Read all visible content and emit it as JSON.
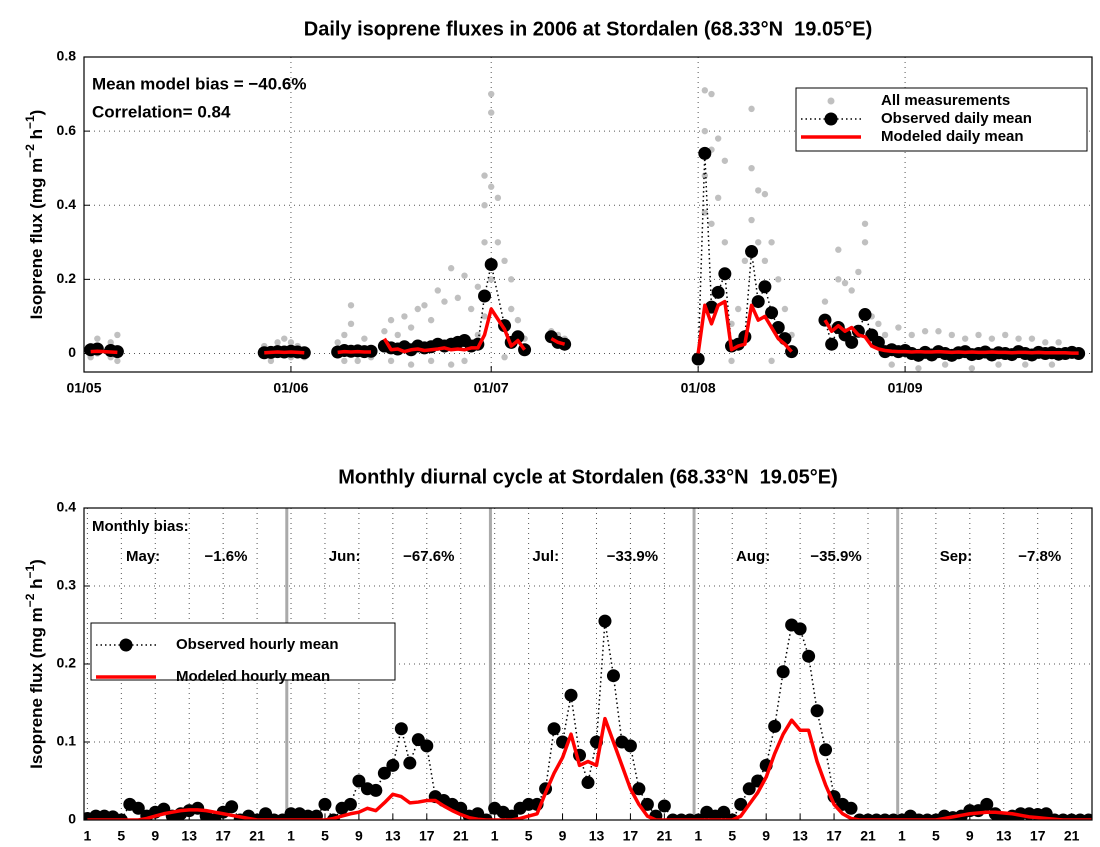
{
  "chart_data": [
    {
      "type": "line",
      "title": "Daily isoprene fluxes in 2006 at Stordalen (68.33°N  19.05°E)",
      "ylabel": [
        "Isoprene flux (mg m",
        "−2",
        " h",
        "−1",
        ")"
      ],
      "annotations": [
        "Mean model bias = −40.6%",
        "Correlation= 0.84"
      ],
      "legend": "upper right",
      "grid": true,
      "xlim": [
        0,
        151
      ],
      "ylim": [
        -0.05,
        0.8
      ],
      "xticks": [
        {
          "value": 0,
          "label": "01/05"
        },
        {
          "value": 31,
          "label": "01/06"
        },
        {
          "value": 61,
          "label": "01/07"
        },
        {
          "value": 92,
          "label": "01/08"
        },
        {
          "value": 123,
          "label": "01/09"
        }
      ],
      "yticks": [
        0,
        0.2,
        0.4,
        0.6,
        0.8
      ],
      "x": [
        1,
        2,
        4,
        5,
        null,
        27,
        28,
        29,
        30,
        31,
        32,
        33,
        null,
        38,
        39,
        40,
        41,
        42,
        43,
        null,
        45,
        46,
        47,
        48,
        49,
        50,
        51,
        52,
        53,
        54,
        55,
        56,
        57,
        58,
        59,
        60,
        61,
        63,
        64,
        65,
        66,
        null,
        70,
        71,
        72,
        null,
        92,
        93,
        94,
        95,
        96,
        97,
        98,
        99,
        100,
        101,
        102,
        103,
        104,
        105,
        106,
        null,
        111,
        112,
        113,
        114,
        115,
        116,
        117,
        118,
        119,
        120,
        121,
        122,
        123,
        124,
        125,
        126,
        127,
        128,
        129,
        130,
        131,
        132,
        133,
        134,
        135,
        136,
        137,
        138,
        139,
        140,
        141,
        142,
        143,
        144,
        145,
        146,
        147,
        148,
        149
      ],
      "series": [
        {
          "name": "All measurements",
          "color": "#c0c0c0",
          "style": "points",
          "x": [
            1,
            1,
            2,
            2,
            4,
            5,
            5,
            4,
            27,
            28,
            29,
            30,
            31,
            31,
            32,
            33,
            29,
            38,
            39,
            40,
            40,
            41,
            42,
            43,
            39,
            45,
            46,
            47,
            48,
            49,
            50,
            51,
            52,
            53,
            54,
            55,
            56,
            57,
            58,
            46,
            49,
            52,
            55,
            57,
            59,
            60,
            60,
            60,
            61,
            61,
            61,
            61,
            60,
            59,
            62,
            62,
            63,
            64,
            64,
            65,
            66,
            70,
            71,
            72,
            63,
            93,
            93,
            93,
            93,
            94,
            94,
            94,
            95,
            95,
            96,
            96,
            97,
            98,
            99,
            100,
            100,
            100,
            101,
            101,
            102,
            102,
            103,
            104,
            105,
            106,
            92,
            97,
            103,
            111,
            112,
            113,
            113,
            114,
            115,
            116,
            117,
            117,
            118,
            119,
            120,
            122,
            124,
            126,
            128,
            130,
            132,
            134,
            136,
            138,
            140,
            142,
            144,
            146,
            121,
            125,
            129,
            133,
            137,
            141,
            145
          ],
          "values": [
            0.02,
            -0.01,
            0.04,
            0.0,
            0.03,
            0.05,
            -0.02,
            -0.01,
            0.02,
            -0.02,
            0.03,
            0.04,
            -0.01,
            0.03,
            0.02,
            -0.01,
            0.01,
            0.03,
            0.05,
            0.13,
            0.08,
            -0.02,
            0.04,
            -0.01,
            -0.02,
            0.06,
            0.09,
            0.05,
            0.1,
            0.07,
            0.12,
            0.13,
            0.09,
            0.17,
            0.14,
            0.23,
            0.15,
            0.21,
            0.12,
            -0.02,
            -0.03,
            -0.02,
            -0.03,
            -0.02,
            0.18,
            0.48,
            0.4,
            0.3,
            0.7,
            0.65,
            0.45,
            0.2,
            0.1,
            0.05,
            0.42,
            0.3,
            0.25,
            0.2,
            0.12,
            0.09,
            0.04,
            0.06,
            0.05,
            0.04,
            -0.01,
            0.71,
            0.6,
            0.48,
            0.38,
            0.7,
            0.55,
            0.35,
            0.58,
            0.42,
            0.52,
            0.3,
            0.08,
            0.12,
            0.25,
            0.66,
            0.5,
            0.36,
            0.44,
            0.3,
            0.43,
            0.25,
            0.3,
            0.2,
            0.12,
            0.05,
            -0.02,
            -0.02,
            -0.02,
            0.14,
            0.07,
            0.28,
            0.2,
            0.19,
            0.17,
            0.22,
            0.35,
            0.3,
            0.1,
            0.08,
            0.05,
            0.07,
            0.05,
            0.06,
            0.06,
            0.05,
            0.04,
            0.05,
            0.04,
            0.05,
            0.04,
            0.04,
            0.03,
            0.03,
            -0.03,
            -0.04,
            -0.03,
            -0.04,
            -0.03,
            -0.03,
            -0.03
          ]
        },
        {
          "name": "Observed daily mean",
          "color": "#000000",
          "style": "dotted-markers",
          "values": [
            0.01,
            0.012,
            0.008,
            0.005,
            null,
            0.002,
            0.003,
            0.005,
            0.004,
            0.006,
            0.004,
            0.002,
            null,
            0.004,
            0.008,
            0.006,
            0.007,
            0.005,
            0.006,
            null,
            0.02,
            0.015,
            0.012,
            0.018,
            0.01,
            0.02,
            0.015,
            0.018,
            0.025,
            0.02,
            0.025,
            0.03,
            0.035,
            0.02,
            0.025,
            0.155,
            0.24,
            0.075,
            0.03,
            0.045,
            0.01,
            null,
            0.045,
            0.03,
            0.025,
            null,
            -0.015,
            0.54,
            0.125,
            0.165,
            0.215,
            0.02,
            0.025,
            0.045,
            0.275,
            0.14,
            0.18,
            0.11,
            0.07,
            0.04,
            0.005,
            null,
            0.09,
            0.025,
            0.07,
            0.05,
            0.03,
            0.06,
            0.105,
            0.05,
            0.03,
            0.005,
            0.01,
            0.005,
            0.008,
            0,
            -0.005,
            0.003,
            -0.004,
            0.005,
            0,
            -0.005,
            0.002,
            0.005,
            -0.003,
            0,
            0.004,
            -0.004,
            0.002,
            0,
            -0.003,
            0.005,
            0,
            -0.004,
            0.003,
            0,
            0.002,
            -0.002,
            0,
            0.003,
            0
          ]
        },
        {
          "name": "Modeled daily mean",
          "color": "#ff0000",
          "style": "line",
          "values": [
            0.005,
            0.006,
            0.004,
            0.003,
            null,
            0.002,
            0.003,
            0.004,
            0.003,
            0.004,
            0.003,
            0.002,
            null,
            0.003,
            0.005,
            0.004,
            0.005,
            0.004,
            0.004,
            null,
            0.04,
            0.01,
            0.012,
            0.005,
            0.01,
            0.012,
            0.008,
            0.01,
            0.012,
            0.015,
            0.01,
            0.012,
            0.01,
            0.015,
            0.015,
            0.05,
            0.12,
            0.065,
            0.02,
            0.035,
            0.01,
            null,
            0.04,
            0.03,
            0.025,
            null,
            0,
            0.13,
            0.08,
            0.13,
            0.14,
            0.01,
            0.02,
            0.025,
            0.13,
            0.09,
            0.1,
            0.07,
            0.04,
            0.025,
            0.005,
            null,
            0.09,
            0.06,
            0.075,
            0.06,
            0.07,
            0.05,
            0.045,
            0.02,
            0.012,
            0.008,
            0.006,
            0.005,
            0.005,
            0.004,
            0.005,
            0.004,
            0.004,
            0.005,
            0.004,
            0.003,
            0.004,
            0.003,
            0.004,
            0.003,
            0.003,
            0.004,
            0.003,
            0.003,
            0.002,
            0.003,
            0.003,
            0.002,
            0.003,
            0.002,
            0.002,
            0.002,
            0.002,
            0.001,
            0.001
          ]
        }
      ]
    },
    {
      "type": "line",
      "title": "Monthly diurnal cycle at Stordalen (68.33°N  19.05°E)",
      "ylabel": [
        "Isoprene flux (mg m",
        "−2",
        " h",
        "−1",
        ")"
      ],
      "legend": "center left",
      "grid": true,
      "xlim": [
        0.6,
        119.4
      ],
      "ylim": [
        0,
        0.4
      ],
      "xticks": [
        1,
        5,
        9,
        13,
        17,
        21,
        {
          "value": 25,
          "label": "1"
        },
        {
          "value": 29,
          "label": "5"
        },
        {
          "value": 33,
          "label": "9"
        },
        {
          "value": 37,
          "label": "13"
        },
        {
          "value": 41,
          "label": "17"
        },
        {
          "value": 45,
          "label": "21"
        },
        {
          "value": 49,
          "label": "1"
        },
        {
          "value": 53,
          "label": "5"
        },
        {
          "value": 57,
          "label": "9"
        },
        {
          "value": 61,
          "label": "13"
        },
        {
          "value": 65,
          "label": "17"
        },
        {
          "value": 69,
          "label": "21"
        },
        {
          "value": 73,
          "label": "1"
        },
        {
          "value": 77,
          "label": "5"
        },
        {
          "value": 81,
          "label": "9"
        },
        {
          "value": 85,
          "label": "13"
        },
        {
          "value": 89,
          "label": "17"
        },
        {
          "value": 93,
          "label": "21"
        },
        {
          "value": 97,
          "label": "1"
        },
        {
          "value": 101,
          "label": "5"
        },
        {
          "value": 105,
          "label": "9"
        },
        {
          "value": 109,
          "label": "13"
        },
        {
          "value": 113,
          "label": "17"
        },
        {
          "value": 117,
          "label": "21"
        }
      ],
      "yticks": [
        0,
        0.1,
        0.2,
        0.3,
        0.4
      ],
      "month_boundaries": [
        24.5,
        48.5,
        72.5,
        96.5
      ],
      "month_bias_title": "Monthly bias:",
      "month_bias": [
        {
          "month": "May:",
          "bias": "−1.6%"
        },
        {
          "month": "Jun:",
          "bias": "−67.6%"
        },
        {
          "month": "Jul:",
          "bias": "−33.9%"
        },
        {
          "month": "Aug:",
          "bias": "−35.9%"
        },
        {
          "month": "Sep:",
          "bias": "−7.8%"
        }
      ],
      "x": [
        1,
        2,
        3,
        4,
        5,
        6,
        7,
        8,
        9,
        10,
        11,
        12,
        13,
        14,
        15,
        16,
        17,
        18,
        19,
        20,
        21,
        22,
        23,
        24,
        25,
        26,
        27,
        28,
        29,
        30,
        31,
        32,
        33,
        34,
        35,
        36,
        37,
        38,
        39,
        40,
        41,
        42,
        43,
        44,
        45,
        46,
        47,
        48,
        49,
        50,
        51,
        52,
        53,
        54,
        55,
        56,
        57,
        58,
        59,
        60,
        61,
        62,
        63,
        64,
        65,
        66,
        67,
        68,
        69,
        70,
        71,
        72,
        73,
        74,
        75,
        76,
        77,
        78,
        79,
        80,
        81,
        82,
        83,
        84,
        85,
        86,
        87,
        88,
        89,
        90,
        91,
        92,
        93,
        94,
        95,
        96,
        97,
        98,
        99,
        100,
        101,
        102,
        103,
        104,
        105,
        106,
        107,
        108,
        109,
        110,
        111,
        112,
        113,
        114,
        115,
        116,
        117,
        118,
        119,
        120
      ],
      "series": [
        {
          "name": "Observed hourly mean",
          "color": "#000000",
          "style": "dotted-markers",
          "values": [
            0.002,
            0.005,
            0.005,
            0.004,
            0.0,
            0.02,
            0.015,
            0.005,
            0.01,
            0.014,
            0.005,
            0.008,
            0.012,
            0.015,
            0.005,
            0.0,
            0.01,
            0.017,
            0.0,
            0.005,
            0.0,
            0.008,
            0.0,
            0.0,
            0.008,
            0.008,
            0.005,
            0.005,
            0.02,
            0.0,
            0.015,
            0.02,
            0.05,
            0.04,
            0.038,
            0.06,
            0.07,
            0.117,
            0.073,
            0.103,
            0.095,
            0.03,
            0.025,
            0.02,
            0.015,
            0.005,
            0.008,
            0.0,
            0.015,
            0.01,
            0.005,
            0.015,
            0.02,
            0.02,
            0.04,
            0.117,
            0.1,
            0.16,
            0.083,
            0.048,
            0.1,
            0.255,
            0.185,
            0.1,
            0.095,
            0.04,
            0.02,
            0.005,
            0.018,
            0.0,
            0.0,
            0.0,
            0.0,
            0.01,
            0.005,
            0.01,
            0.0,
            0.02,
            0.04,
            0.05,
            0.07,
            0.12,
            0.19,
            0.25,
            0.245,
            0.21,
            0.14,
            0.09,
            0.03,
            0.02,
            0.015,
            0.0,
            0.0,
            0.0,
            0.0,
            0.0,
            0.0,
            0.005,
            0.0,
            0.0,
            0.0,
            0.005,
            0.003,
            0.005,
            0.012,
            0.012,
            0.02,
            0.008,
            0.0,
            0.005,
            0.008,
            0.008,
            0.007,
            0.008,
            0.0,
            0.0,
            0.0,
            0.0,
            0.0,
            0.0
          ]
        },
        {
          "name": "Modeled hourly mean",
          "color": "#ff0000",
          "style": "line",
          "values": [
            0,
            0,
            0,
            0,
            0,
            0,
            0,
            0.002,
            0.005,
            0.008,
            0.01,
            0.012,
            0.013,
            0.013,
            0.012,
            0.01,
            0.008,
            0.006,
            0.004,
            0.002,
            0,
            0,
            0,
            0,
            0,
            0,
            0,
            0,
            0,
            0.002,
            0.005,
            0.008,
            0.01,
            0.015,
            0.012,
            0.022,
            0.033,
            0.03,
            0.022,
            0.023,
            0.025,
            0.025,
            0.018,
            0.012,
            0.007,
            0.003,
            0.001,
            0,
            0,
            0,
            0,
            0.002,
            0.005,
            0.008,
            0.035,
            0.06,
            0.08,
            0.11,
            0.07,
            0.075,
            0.07,
            0.13,
            0.1,
            0.07,
            0.04,
            0.02,
            0.005,
            0,
            0,
            0,
            0,
            0,
            0,
            0,
            0,
            0,
            0,
            0.005,
            0.02,
            0.035,
            0.055,
            0.085,
            0.11,
            0.128,
            0.115,
            0.115,
            0.075,
            0.045,
            0.02,
            0.008,
            0.002,
            0,
            0,
            0,
            0,
            0,
            0,
            0,
            0,
            0,
            0,
            0.002,
            0.004,
            0.006,
            0.008,
            0.009,
            0.01,
            0.01,
            0.009,
            0.008,
            0.006,
            0.004,
            0.003,
            0.002,
            0.001,
            0,
            0,
            0,
            0,
            0
          ]
        }
      ]
    }
  ]
}
